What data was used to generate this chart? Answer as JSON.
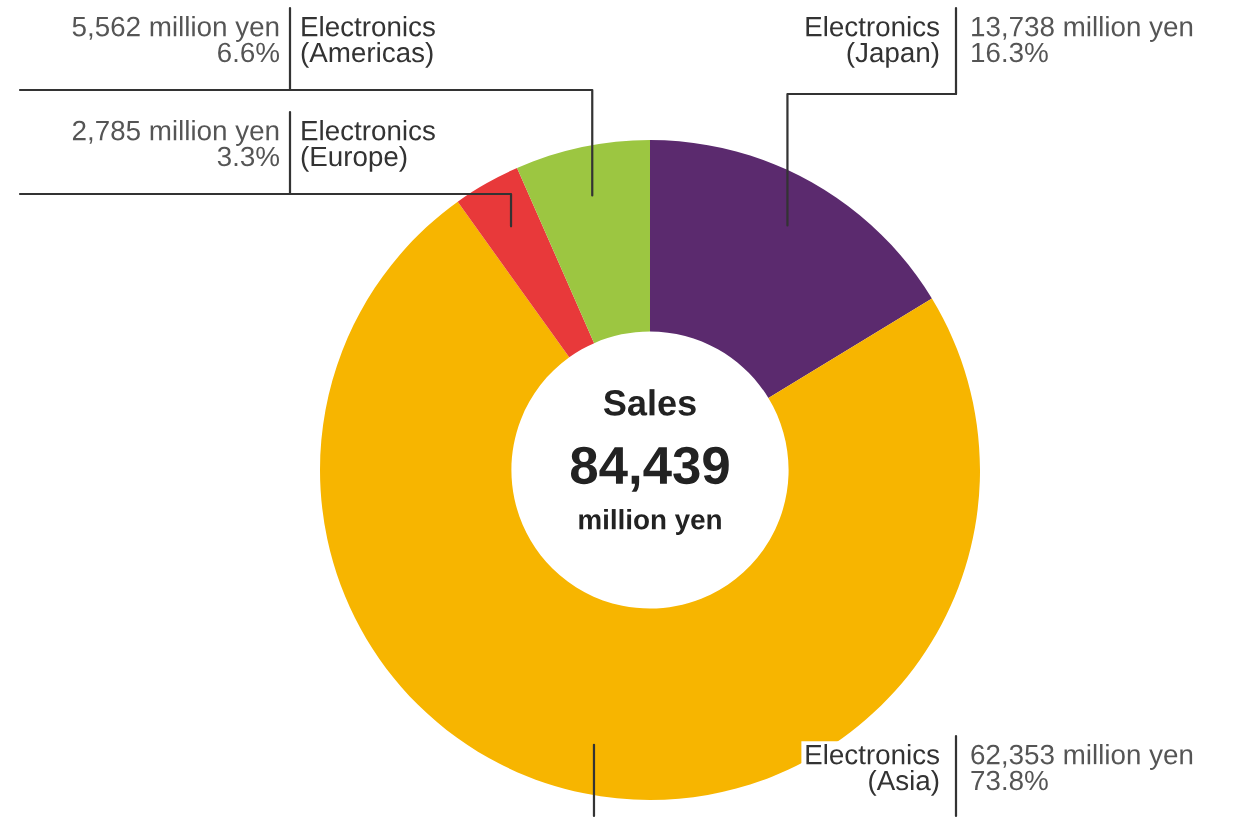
{
  "chart_data": {
    "type": "donut",
    "categories": [
      "Electronics\n(Japan)",
      "Electronics\n(Asia)",
      "Electronics\n(Europe)",
      "Electronics\n(Americas)"
    ],
    "values": [
      16.3,
      73.8,
      3.3,
      6.6
    ],
    "colors": [
      "#5b2a6e",
      "#f7b500",
      "#e8393a",
      "#9cc641"
    ],
    "value_labels": [
      "13,738 million yen\n16.3%",
      "62,353 million yen\n73.8%",
      "2,785 million yen\n3.3%",
      "5,562 million yen\n6.6%"
    ],
    "annotations": [
      "Sales",
      "84,439",
      "million yen"
    ]
  }
}
